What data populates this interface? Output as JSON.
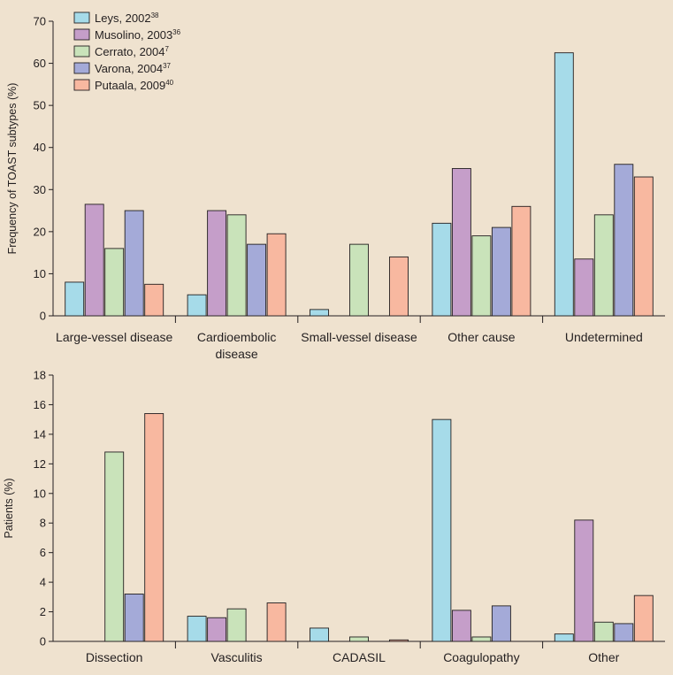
{
  "colors": {
    "background": "#efe2cf",
    "series": [
      "#a6dbe9",
      "#c59ec9",
      "#c9e3ba",
      "#a4aad8",
      "#f8b8a0"
    ]
  },
  "legend": [
    {
      "name": "Leys, 2002",
      "ref": "38"
    },
    {
      "name": "Musolino, 2003",
      "ref": "36"
    },
    {
      "name": "Cerrato, 2004",
      "ref": "7"
    },
    {
      "name": "Varona, 2004",
      "ref": "37"
    },
    {
      "name": "Putaala, 2009",
      "ref": "40"
    }
  ],
  "chart_data": [
    {
      "type": "bar",
      "title": "",
      "xlabel": "",
      "ylabel": "Frequency of TOAST subtypes (%)",
      "ylim": [
        0,
        70
      ],
      "yticks": [
        0,
        10,
        20,
        30,
        40,
        50,
        60,
        70
      ],
      "legend_position": "top-left",
      "categories": [
        [
          "Large-vessel disease"
        ],
        [
          "Cardioembolic",
          "disease"
        ],
        [
          "Small-vessel disease"
        ],
        [
          "Other cause"
        ],
        [
          "Undetermined"
        ]
      ],
      "series": [
        {
          "name": "Leys, 2002",
          "values": [
            8,
            5,
            1.5,
            22,
            62.5
          ]
        },
        {
          "name": "Musolino, 2003",
          "values": [
            26.5,
            25,
            null,
            35,
            13.5
          ]
        },
        {
          "name": "Cerrato, 2004",
          "values": [
            16,
            24,
            17,
            19,
            24
          ]
        },
        {
          "name": "Varona, 2004",
          "values": [
            25,
            17,
            null,
            21,
            36
          ]
        },
        {
          "name": "Putaala, 2009",
          "values": [
            7.5,
            19.5,
            14,
            26,
            33
          ]
        }
      ]
    },
    {
      "type": "bar",
      "title": "",
      "xlabel": "",
      "ylabel": "Patients (%)",
      "ylim": [
        0,
        18
      ],
      "yticks": [
        0,
        2,
        4,
        6,
        8,
        10,
        12,
        14,
        16,
        18
      ],
      "categories": [
        [
          "Dissection"
        ],
        [
          "Vasculitis"
        ],
        [
          "CADASIL"
        ],
        [
          "Coagulopathy"
        ],
        [
          "Other"
        ]
      ],
      "series": [
        {
          "name": "Leys, 2002",
          "values": [
            null,
            1.7,
            0.9,
            15,
            0.5
          ]
        },
        {
          "name": "Musolino, 2003",
          "values": [
            null,
            1.6,
            null,
            2.1,
            8.2
          ]
        },
        {
          "name": "Cerrato, 2004",
          "values": [
            12.8,
            2.2,
            0.3,
            0.3,
            1.3
          ]
        },
        {
          "name": "Varona, 2004",
          "values": [
            3.2,
            null,
            null,
            2.4,
            1.2
          ]
        },
        {
          "name": "Putaala, 2009",
          "values": [
            15.4,
            2.6,
            0.1,
            null,
            3.1
          ]
        }
      ]
    }
  ]
}
